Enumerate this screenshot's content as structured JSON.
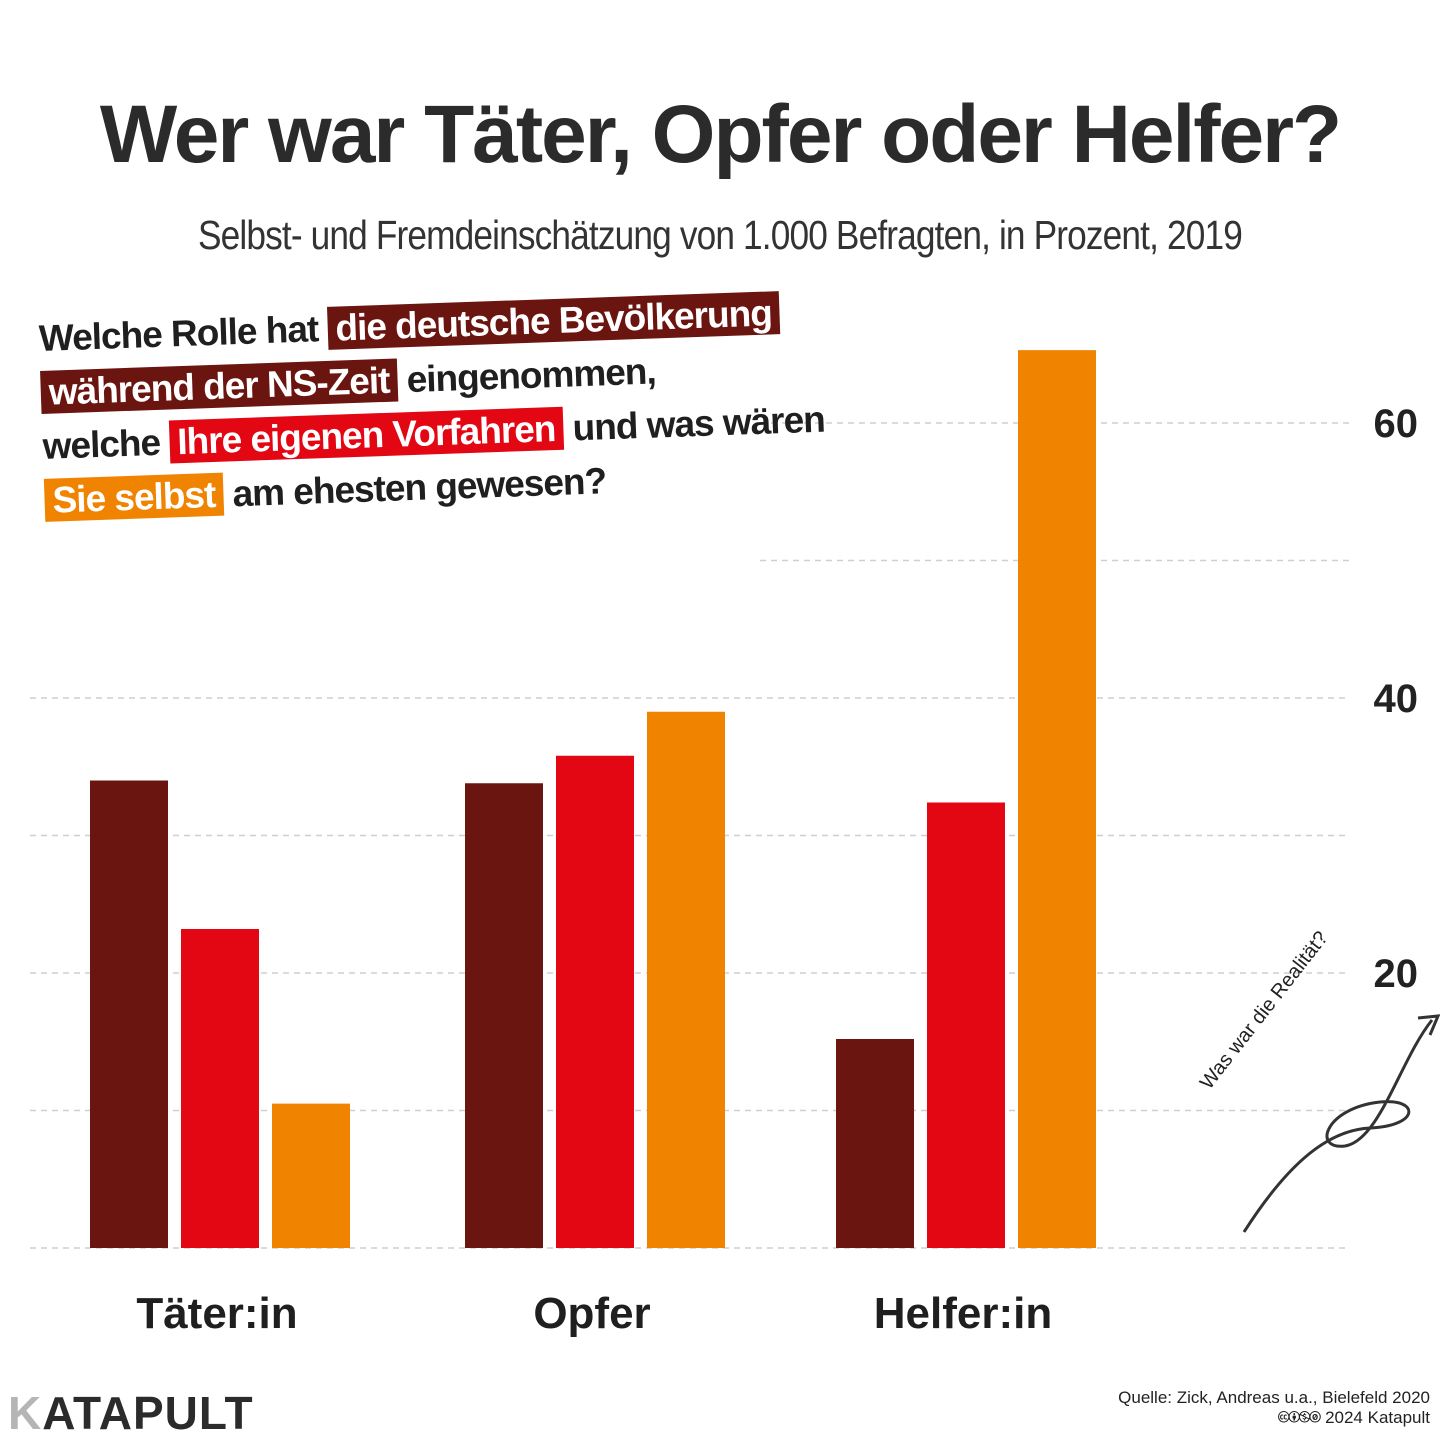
{
  "chart_data": {
    "type": "bar",
    "title": "Wer war Täter, Opfer oder Helfer?",
    "subtitle": "Selbst- und Fremdeinschätzung von 1.000 Befragten, in Prozent, 2019",
    "categories": [
      "Täter:in",
      "Opfer",
      "Helfer:in"
    ],
    "series": [
      {
        "name": "die deutsche Bevölkerung während der NS-Zeit",
        "color": "#6b1510",
        "values": [
          34,
          33.8,
          15.2
        ]
      },
      {
        "name": "Ihre eigenen Vorfahren",
        "color": "#e30613",
        "values": [
          23.2,
          35.8,
          32.4
        ]
      },
      {
        "name": "Sie selbst",
        "color": "#f08300",
        "values": [
          10.5,
          39,
          65.3
        ]
      }
    ],
    "yticks": [
      20,
      40,
      60
    ],
    "ylim": [
      0,
      70
    ],
    "grid": true,
    "xlabel": "",
    "ylabel": ""
  },
  "question": {
    "p1": "Welche Rolle hat",
    "h1": "die deutsche Bevölkerung",
    "h2": "während der NS-Zeit",
    "p2": "eingenommen,",
    "p3": "welche",
    "h3": "Ihre eigenen Vorfahren",
    "p4": "und was wären",
    "h4": "Sie selbst",
    "p5": "am ehesten gewesen?"
  },
  "annotation": "Was war die Realität?",
  "footer": {
    "logo_k": "K",
    "logo_rest": "ATAPULT",
    "source": "Quelle: Zick, Andreas u.a., Bielefeld 2020",
    "license": "🅭🅯🄏🄍 2024 Katapult"
  }
}
